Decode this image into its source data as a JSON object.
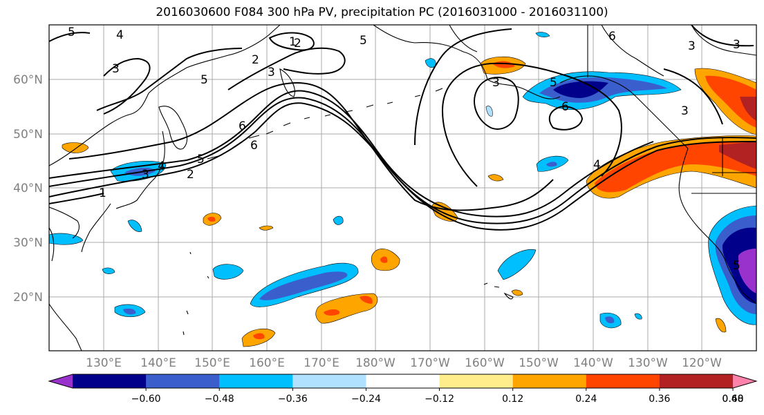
{
  "title": "2016030600 F084 300 hPa PV, precipitation PC (2016031000 - 2016031100)",
  "lat_labels": [
    "60°N",
    "50°N",
    "40°N",
    "30°N",
    "20°N"
  ],
  "lon_labels": [
    "130°E",
    "140°E",
    "150°E",
    "160°E",
    "170°E",
    "180°W",
    "170°W",
    "160°W",
    "150°W",
    "140°W",
    "130°W",
    "120°W"
  ],
  "colorbar": {
    "colors": [
      "#9932cc",
      "#00008b",
      "#3a5fcd",
      "#00bfff",
      "#b0e2ff",
      "#ffffff",
      "#ffec8b",
      "#ffa500",
      "#ff4500",
      "#b22222",
      "#ff82ab"
    ],
    "tick_labels": [
      "−0.60",
      "−0.48",
      "−0.36",
      "−0.24",
      "−0.12",
      "0.12",
      "0.24",
      "0.36",
      "0.48",
      "0.60"
    ]
  },
  "contour_labels": [
    "5",
    "4",
    "3",
    "2",
    "1",
    "5",
    "6",
    "5",
    "3",
    "6",
    "2",
    "1",
    "3",
    "4",
    "2",
    "3",
    "5",
    "3",
    "3",
    "5",
    "6",
    "6",
    "3",
    "5",
    "4"
  ],
  "icons": {
    "land_outline": "coastline-icon",
    "grid": "graticule-icon"
  }
}
